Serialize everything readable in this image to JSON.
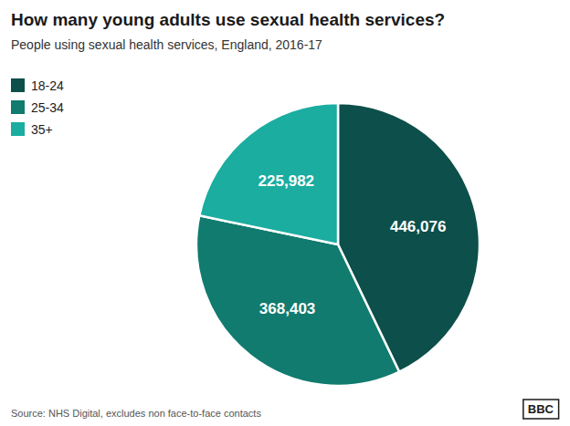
{
  "chart_data": {
    "type": "pie",
    "title": "How many young adults use sexual health services?",
    "subtitle": "People using sexual health services, England, 2016-17",
    "categories": [
      "18-24",
      "25-34",
      "35+"
    ],
    "values": [
      446076,
      368403,
      225982
    ],
    "value_labels": [
      "446,076",
      "368,403",
      "225,982"
    ],
    "colors": [
      "#0d4f4a",
      "#107b6e",
      "#1aada0"
    ],
    "data_labels": true,
    "legend": "upper left",
    "annotations": [
      "Source: NHS Digital, excludes non face-to-face contacts",
      "BBC"
    ]
  }
}
